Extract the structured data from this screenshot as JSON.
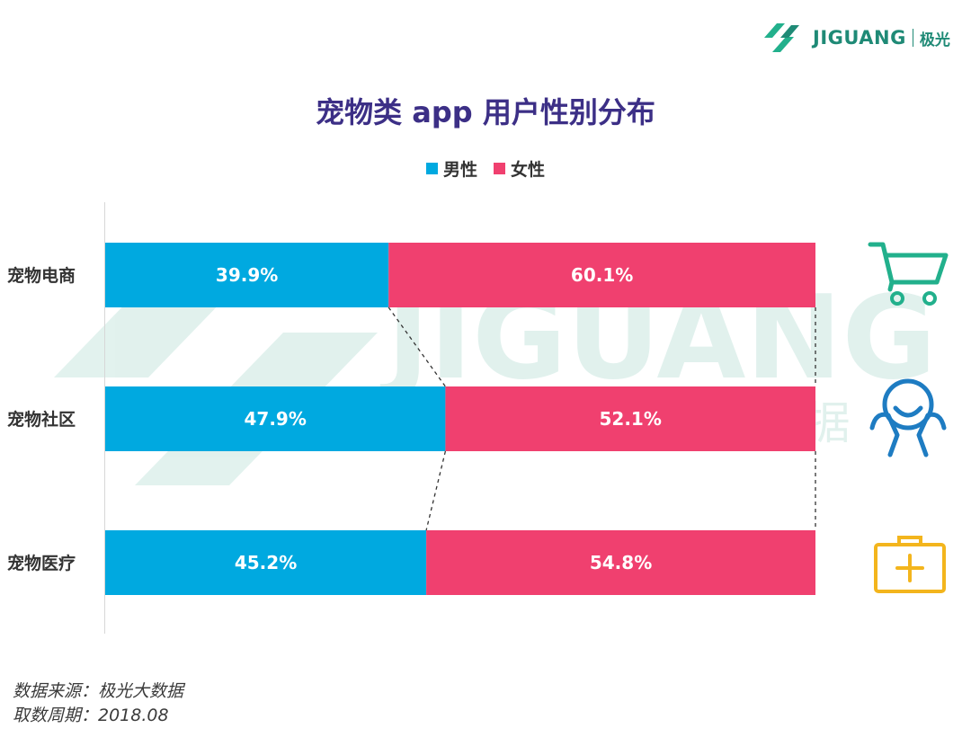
{
  "brand": {
    "name": "JIGUANG",
    "name_cn": "极光",
    "watermark": "JIGUANG",
    "watermark_cn": "极 光 大 数 据"
  },
  "title": "宠物类 app 用户性别分布",
  "legend": [
    {
      "label": "男性",
      "color": "#00a9e0"
    },
    {
      "label": "女性",
      "color": "#f0406f"
    }
  ],
  "chart_data": {
    "type": "bar",
    "stacked": true,
    "orientation": "horizontal",
    "title": "宠物类 app 用户性别分布",
    "categories": [
      "宠物电商",
      "宠物社区",
      "宠物医疗"
    ],
    "series": [
      {
        "name": "男性",
        "color": "#00a9e0",
        "values": [
          39.9,
          47.9,
          45.2
        ],
        "labels": [
          "39.9%",
          "47.9%",
          "45.2%"
        ]
      },
      {
        "name": "女性",
        "color": "#f0406f",
        "values": [
          60.1,
          52.1,
          54.8
        ],
        "labels": [
          "60.1%",
          "52.1%",
          "54.8%"
        ]
      }
    ],
    "xlim": [
      0,
      100
    ],
    "unit": "%",
    "legend_position": "top-center",
    "grid": false
  },
  "icons": [
    "shopping-cart-icon",
    "community-people-icon",
    "medical-kit-icon"
  ],
  "icon_colors": {
    "cart": "#22b08c",
    "community": "#1e7cc2",
    "medical": "#f3b51d"
  },
  "source": {
    "line1": "数据来源：极光大数据",
    "line2": "取数周期：2018.08"
  }
}
